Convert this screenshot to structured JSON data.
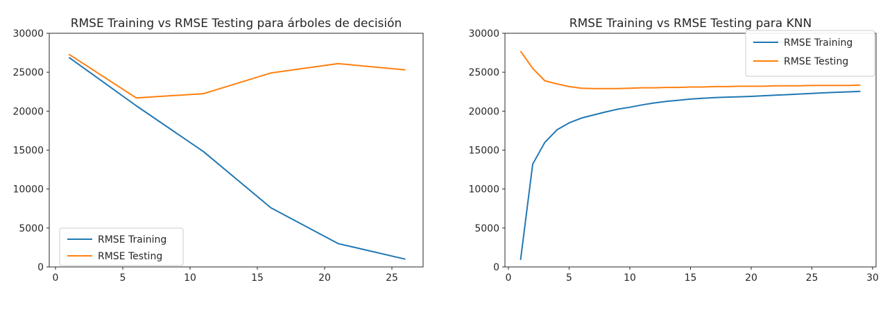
{
  "page": {
    "background_color": "#ffffff",
    "chrome_strip_color": "#f0f0f0"
  },
  "chart_data": [
    {
      "type": "line",
      "title": "RMSE Training vs RMSE Testing para árboles de decisión",
      "xlabel": "",
      "ylabel": "",
      "x": [
        1,
        6,
        11,
        16,
        21,
        26
      ],
      "series": [
        {
          "name": "RMSE Training",
          "color": "#1f77b4",
          "values": [
            26900,
            20700,
            14800,
            7600,
            3000,
            1000
          ]
        },
        {
          "name": "RMSE Testing",
          "color": "#ff7f0e",
          "values": [
            27300,
            21700,
            22250,
            24900,
            26100,
            25300
          ]
        }
      ],
      "xticks": [
        0,
        5,
        10,
        15,
        20,
        25
      ],
      "yticks": [
        0,
        5000,
        10000,
        15000,
        20000,
        25000,
        30000
      ],
      "xlim": [
        -0.5,
        27.5
      ],
      "ylim": [
        0,
        30000
      ],
      "grid": false,
      "legend_position": "lower-left"
    },
    {
      "type": "line",
      "title": "RMSE Training vs RMSE Testing para KNN",
      "xlabel": "",
      "ylabel": "",
      "x": [
        1,
        2,
        3,
        4,
        5,
        6,
        7,
        8,
        9,
        10,
        11,
        12,
        13,
        14,
        15,
        16,
        17,
        18,
        19,
        20,
        21,
        22,
        23,
        24,
        25,
        26,
        27,
        28,
        29
      ],
      "series": [
        {
          "name": "RMSE Training",
          "color": "#1f77b4",
          "values": [
            900,
            13200,
            16000,
            17600,
            18500,
            19100,
            19500,
            19900,
            20250,
            20500,
            20800,
            21050,
            21250,
            21400,
            21550,
            21650,
            21750,
            21800,
            21850,
            21900,
            21980,
            22050,
            22120,
            22200,
            22270,
            22350,
            22420,
            22480,
            22550
          ]
        },
        {
          "name": "RMSE Testing",
          "color": "#ff7f0e",
          "values": [
            27700,
            25500,
            23900,
            23500,
            23150,
            22950,
            22900,
            22900,
            22900,
            22950,
            23000,
            23000,
            23050,
            23050,
            23100,
            23100,
            23150,
            23150,
            23200,
            23200,
            23200,
            23250,
            23250,
            23250,
            23300,
            23300,
            23300,
            23300,
            23350
          ]
        }
      ],
      "xticks": [
        0,
        5,
        10,
        15,
        20,
        25,
        30
      ],
      "yticks": [
        0,
        5000,
        10000,
        15000,
        20000,
        25000,
        30000
      ],
      "xlim": [
        -0.5,
        30.5
      ],
      "ylim": [
        0,
        30000
      ],
      "grid": false,
      "legend_position": "upper-right"
    }
  ]
}
